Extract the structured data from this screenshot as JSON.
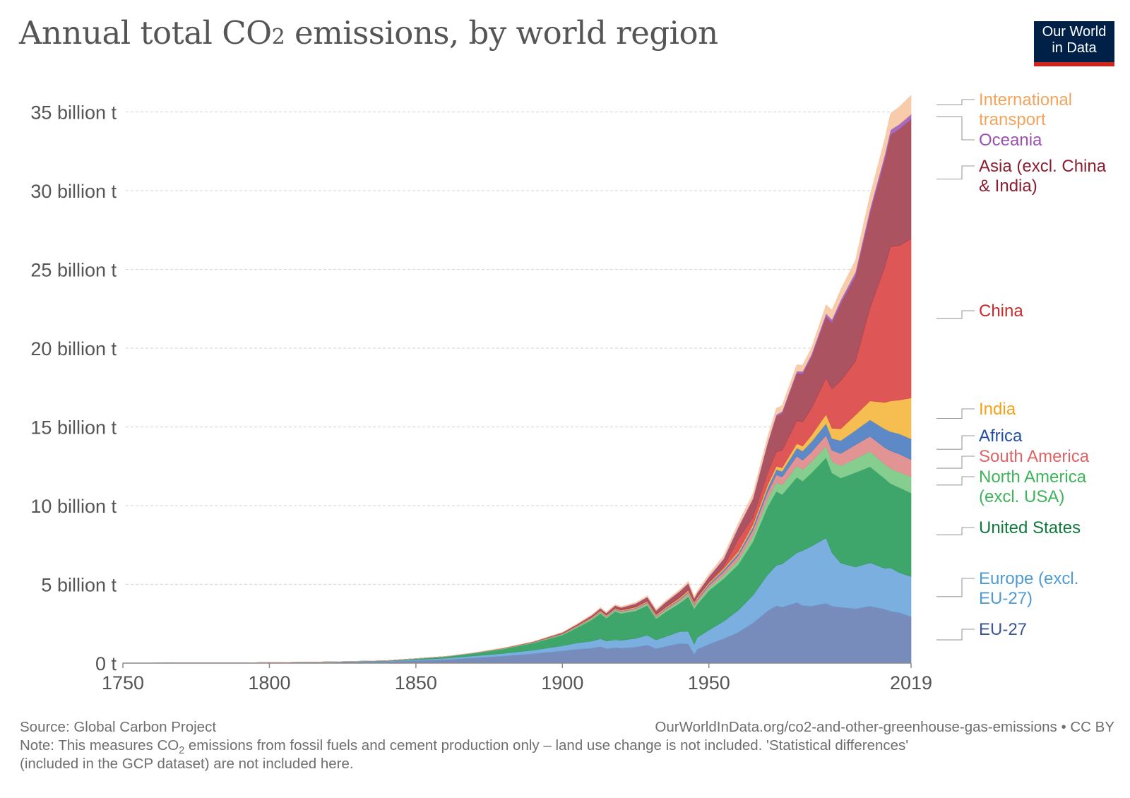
{
  "header": {
    "title_main": "Annual total CO",
    "title_sub": "2",
    "title_rest": " emissions, by world region",
    "logo_line1": "Our World",
    "logo_line2": "in Data"
  },
  "footer": {
    "source": "Source: Global Carbon Project",
    "url": "OurWorldInData.org/co2-and-other-greenhouse-gas-emissions • CC BY",
    "note_a": "Note: This measures CO",
    "note_sub": "2",
    "note_b": " emissions from fossil fuels and cement production only – land use change is not included. 'Statistical differences'",
    "note_c": "(included in the GCP dataset) are not included here."
  },
  "chart_data": {
    "type": "area",
    "stacked": true,
    "x_ticks": [
      1750,
      1800,
      1850,
      1900,
      1950,
      2019
    ],
    "y_ticks": [
      0,
      5,
      10,
      15,
      20,
      25,
      30,
      35
    ],
    "y_tick_labels": [
      "0 t",
      "5 billion t",
      "10 billion t",
      "15 billion t",
      "20 billion t",
      "25 billion t",
      "30 billion t",
      "35 billion t"
    ],
    "xlim": [
      1750,
      2019
    ],
    "ylim": [
      0,
      35
    ],
    "unit": "billion t",
    "grid": "horizontal dashed",
    "legend": "right, labels beside series",
    "x": [
      1750,
      1760,
      1770,
      1780,
      1790,
      1800,
      1810,
      1820,
      1830,
      1840,
      1850,
      1860,
      1870,
      1880,
      1890,
      1900,
      1905,
      1910,
      1913,
      1915,
      1918,
      1920,
      1925,
      1929,
      1932,
      1935,
      1940,
      1943,
      1945,
      1946,
      1950,
      1955,
      1960,
      1965,
      1970,
      1973,
      1975,
      1980,
      1982,
      1985,
      1990,
      1992,
      1995,
      2000,
      2005,
      2010,
      2012,
      2015,
      2019
    ],
    "series": [
      {
        "name": "EU-27",
        "color": "#6d82b5",
        "values": [
          0.01,
          0.01,
          0.02,
          0.02,
          0.02,
          0.03,
          0.04,
          0.05,
          0.07,
          0.09,
          0.16,
          0.22,
          0.33,
          0.45,
          0.6,
          0.78,
          0.88,
          0.95,
          1.05,
          0.92,
          0.98,
          0.95,
          1.02,
          1.15,
          0.92,
          1.05,
          1.25,
          1.22,
          0.55,
          0.88,
          1.2,
          1.55,
          1.95,
          2.55,
          3.3,
          3.65,
          3.55,
          3.85,
          3.65,
          3.62,
          3.8,
          3.62,
          3.55,
          3.45,
          3.62,
          3.42,
          3.3,
          3.2,
          2.95
        ]
      },
      {
        "name": "Europe (excl. EU-27)",
        "color": "#6fa8dc",
        "values": [
          0.0,
          0.0,
          0.0,
          0.0,
          0.0,
          0.01,
          0.01,
          0.02,
          0.03,
          0.04,
          0.06,
          0.09,
          0.13,
          0.17,
          0.22,
          0.32,
          0.4,
          0.45,
          0.5,
          0.48,
          0.5,
          0.5,
          0.55,
          0.62,
          0.55,
          0.62,
          0.75,
          0.8,
          0.65,
          0.75,
          0.9,
          1.1,
          1.4,
          1.75,
          2.3,
          2.55,
          2.75,
          3.15,
          3.5,
          3.8,
          4.15,
          3.4,
          2.8,
          2.65,
          2.75,
          2.6,
          2.75,
          2.55,
          2.55
        ]
      },
      {
        "name": "United States",
        "color": "#2f9e5e",
        "values": [
          0.0,
          0.0,
          0.0,
          0.0,
          0.0,
          0.0,
          0.01,
          0.01,
          0.02,
          0.03,
          0.06,
          0.1,
          0.17,
          0.28,
          0.45,
          0.68,
          0.96,
          1.35,
          1.6,
          1.45,
          1.8,
          1.7,
          1.75,
          1.9,
          1.35,
          1.55,
          1.8,
          2.2,
          2.25,
          2.1,
          2.5,
          2.7,
          2.9,
          3.4,
          4.3,
          4.7,
          4.4,
          4.8,
          4.4,
          4.65,
          5.1,
          5.05,
          5.4,
          6.0,
          6.1,
          5.7,
          5.35,
          5.4,
          5.3
        ]
      },
      {
        "name": "North America (excl. USA)",
        "color": "#7cc987",
        "values": [
          0.0,
          0.0,
          0.0,
          0.0,
          0.0,
          0.0,
          0.0,
          0.0,
          0.0,
          0.0,
          0.01,
          0.01,
          0.02,
          0.02,
          0.03,
          0.04,
          0.05,
          0.06,
          0.07,
          0.07,
          0.08,
          0.08,
          0.09,
          0.1,
          0.09,
          0.1,
          0.12,
          0.14,
          0.14,
          0.14,
          0.17,
          0.22,
          0.28,
          0.38,
          0.5,
          0.58,
          0.62,
          0.72,
          0.74,
          0.72,
          0.74,
          0.74,
          0.78,
          0.88,
          0.98,
          0.92,
          0.96,
          0.98,
          1.02
        ]
      },
      {
        "name": "South America",
        "color": "#e08a8a",
        "values": [
          0.0,
          0.0,
          0.0,
          0.0,
          0.0,
          0.0,
          0.0,
          0.0,
          0.0,
          0.0,
          0.0,
          0.0,
          0.0,
          0.01,
          0.01,
          0.02,
          0.03,
          0.04,
          0.05,
          0.05,
          0.05,
          0.05,
          0.06,
          0.07,
          0.07,
          0.08,
          0.1,
          0.11,
          0.12,
          0.13,
          0.16,
          0.22,
          0.28,
          0.35,
          0.42,
          0.48,
          0.5,
          0.62,
          0.6,
          0.62,
          0.68,
          0.7,
          0.78,
          0.88,
          0.95,
          1.05,
          1.12,
          1.15,
          1.1
        ]
      },
      {
        "name": "Africa",
        "color": "#4f7fc2",
        "values": [
          0.0,
          0.0,
          0.0,
          0.0,
          0.0,
          0.0,
          0.0,
          0.0,
          0.0,
          0.0,
          0.0,
          0.0,
          0.0,
          0.0,
          0.01,
          0.01,
          0.02,
          0.02,
          0.02,
          0.02,
          0.03,
          0.03,
          0.03,
          0.04,
          0.04,
          0.04,
          0.05,
          0.06,
          0.06,
          0.07,
          0.09,
          0.12,
          0.15,
          0.2,
          0.28,
          0.33,
          0.36,
          0.52,
          0.58,
          0.65,
          0.75,
          0.76,
          0.82,
          0.92,
          1.05,
          1.18,
          1.22,
          1.28,
          1.32
        ]
      },
      {
        "name": "India",
        "color": "#f5b942",
        "values": [
          0.0,
          0.0,
          0.0,
          0.0,
          0.0,
          0.0,
          0.0,
          0.0,
          0.0,
          0.0,
          0.0,
          0.0,
          0.0,
          0.01,
          0.01,
          0.02,
          0.03,
          0.03,
          0.04,
          0.04,
          0.04,
          0.04,
          0.05,
          0.05,
          0.05,
          0.06,
          0.07,
          0.08,
          0.08,
          0.08,
          0.07,
          0.09,
          0.12,
          0.16,
          0.19,
          0.21,
          0.23,
          0.28,
          0.32,
          0.4,
          0.58,
          0.64,
          0.75,
          0.98,
          1.2,
          1.68,
          1.95,
          2.15,
          2.6
        ]
      },
      {
        "name": "China",
        "color": "#dc4848",
        "values": [
          0.0,
          0.0,
          0.0,
          0.0,
          0.0,
          0.0,
          0.0,
          0.0,
          0.0,
          0.0,
          0.0,
          0.0,
          0.0,
          0.0,
          0.0,
          0.01,
          0.01,
          0.02,
          0.02,
          0.02,
          0.03,
          0.03,
          0.03,
          0.03,
          0.03,
          0.04,
          0.05,
          0.06,
          0.06,
          0.07,
          0.08,
          0.12,
          0.78,
          0.48,
          0.78,
          0.92,
          1.1,
          1.45,
          1.52,
          1.72,
          2.3,
          2.5,
          3.05,
          3.4,
          5.9,
          8.6,
          9.8,
          9.8,
          10.1
        ]
      },
      {
        "name": "Asia (excl. China & India)",
        "color": "#a44454",
        "values": [
          0.0,
          0.0,
          0.0,
          0.0,
          0.0,
          0.0,
          0.0,
          0.0,
          0.0,
          0.0,
          0.0,
          0.0,
          0.01,
          0.02,
          0.03,
          0.05,
          0.07,
          0.1,
          0.12,
          0.12,
          0.14,
          0.14,
          0.18,
          0.22,
          0.22,
          0.28,
          0.35,
          0.38,
          0.18,
          0.2,
          0.28,
          0.45,
          0.7,
          1.1,
          1.8,
          2.25,
          2.35,
          3.0,
          3.05,
          3.25,
          3.9,
          4.2,
          4.9,
          5.4,
          6.0,
          6.8,
          7.1,
          7.4,
          7.6
        ]
      },
      {
        "name": "Oceania",
        "color": "#a05fb5",
        "values": [
          0.0,
          0.0,
          0.0,
          0.0,
          0.0,
          0.0,
          0.0,
          0.0,
          0.0,
          0.0,
          0.0,
          0.0,
          0.0,
          0.0,
          0.0,
          0.01,
          0.01,
          0.01,
          0.01,
          0.01,
          0.01,
          0.01,
          0.02,
          0.02,
          0.02,
          0.02,
          0.02,
          0.03,
          0.03,
          0.03,
          0.04,
          0.05,
          0.07,
          0.08,
          0.1,
          0.11,
          0.12,
          0.15,
          0.16,
          0.17,
          0.2,
          0.21,
          0.23,
          0.26,
          0.29,
          0.31,
          0.31,
          0.31,
          0.31
        ]
      },
      {
        "name": "International transport",
        "color": "#f7c7a3",
        "values": [
          0.0,
          0.0,
          0.0,
          0.0,
          0.0,
          0.0,
          0.0,
          0.0,
          0.0,
          0.0,
          0.0,
          0.0,
          0.0,
          0.01,
          0.01,
          0.03,
          0.04,
          0.05,
          0.06,
          0.06,
          0.06,
          0.06,
          0.07,
          0.08,
          0.08,
          0.08,
          0.1,
          0.12,
          0.12,
          0.13,
          0.16,
          0.2,
          0.25,
          0.3,
          0.36,
          0.4,
          0.38,
          0.4,
          0.4,
          0.42,
          0.55,
          0.6,
          0.66,
          0.75,
          0.86,
          1.0,
          1.05,
          1.1,
          1.2
        ]
      }
    ],
    "legend_labels": [
      {
        "name": "International transport",
        "lines": [
          "International",
          "transport"
        ],
        "color": "#f2a45c"
      },
      {
        "name": "Oceania",
        "lines": [
          "Oceania"
        ],
        "color": "#9b51b0"
      },
      {
        "name": "Asia (excl. China & India)",
        "lines": [
          "Asia (excl. China",
          "& India)"
        ],
        "color": "#8c1c2f"
      },
      {
        "name": "China",
        "lines": [
          "China"
        ],
        "color": "#c92a2a"
      },
      {
        "name": "India",
        "lines": [
          "India"
        ],
        "color": "#f3a21a"
      },
      {
        "name": "Africa",
        "lines": [
          "Africa"
        ],
        "color": "#1f4f9e"
      },
      {
        "name": "South America",
        "lines": [
          "South America"
        ],
        "color": "#dd6464"
      },
      {
        "name": "North America (excl. USA)",
        "lines": [
          "North America",
          "(excl. USA)"
        ],
        "color": "#3fb35a"
      },
      {
        "name": "United States",
        "lines": [
          "United States"
        ],
        "color": "#0f7a3c"
      },
      {
        "name": "Europe (excl. EU-27)",
        "lines": [
          "Europe (excl.",
          "EU-27)"
        ],
        "color": "#4e9bd4"
      },
      {
        "name": "EU-27",
        "lines": [
          "EU-27"
        ],
        "color": "#3b5694"
      }
    ]
  }
}
